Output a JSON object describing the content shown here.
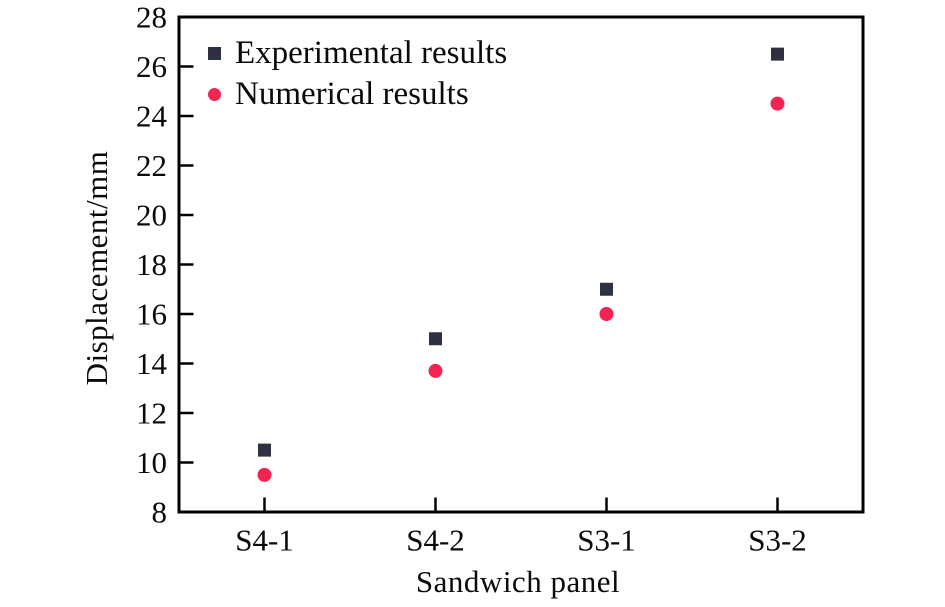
{
  "chart_data": {
    "type": "scatter",
    "xlabel": "Sandwich panel",
    "ylabel": "Displacement/mm",
    "categories": [
      "S4-1",
      "S4-2",
      "S3-1",
      "S3-2"
    ],
    "series": [
      {
        "name": "Experimental results",
        "marker": "square",
        "color": "#2e3142",
        "values": [
          10.5,
          15.0,
          17.0,
          26.5
        ]
      },
      {
        "name": "Numerical results",
        "marker": "circle",
        "color": "#f32452",
        "values": [
          9.5,
          13.7,
          16.0,
          24.5
        ]
      }
    ],
    "ylim": [
      8,
      28
    ],
    "yticks": [
      8,
      10,
      12,
      14,
      16,
      18,
      20,
      22,
      24,
      26,
      28
    ],
    "grid": false,
    "legend_position": "top-left-inside",
    "axis_color": "#000000",
    "text_color": "#0a0a0a",
    "background_color": "#ffffff"
  }
}
